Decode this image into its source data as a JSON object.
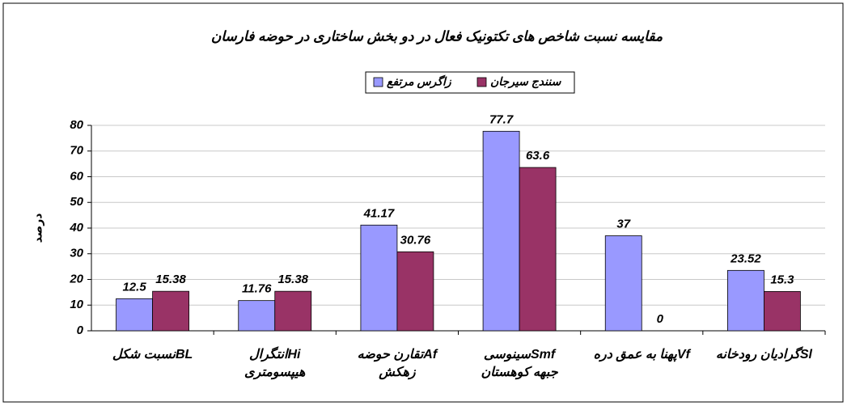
{
  "chart_data": {
    "type": "bar",
    "title": "مقایسه نسبت شاخص های تکتونیک فعال در دو بخش ساختاری در حوضه فارسان",
    "y_label": "درصد",
    "categories": [
      [
        "نسبت شکلBL"
      ],
      [
        "انتگرالHi",
        "هیپسومتری"
      ],
      [
        "تقارن حوضهAf",
        "زهکش"
      ],
      [
        "سینوسیSmf",
        "جبهه کوهستان"
      ],
      [
        "پهنا به عمق درهVf"
      ],
      [
        "گرادیان رودخانهSl"
      ]
    ],
    "series": [
      {
        "name": "زاگرس مرتفع",
        "color": "#9999ff",
        "values": [
          12.5,
          11.76,
          41.17,
          77.7,
          37,
          23.52
        ]
      },
      {
        "name": "سنندج سیرجان",
        "color": "#993366",
        "values": [
          15.38,
          15.38,
          30.76,
          63.6,
          0,
          15.3
        ]
      }
    ],
    "ylim": [
      0,
      80
    ],
    "yticks": [
      0,
      10,
      20,
      30,
      40,
      50,
      60,
      70,
      80
    ],
    "grid": true
  }
}
